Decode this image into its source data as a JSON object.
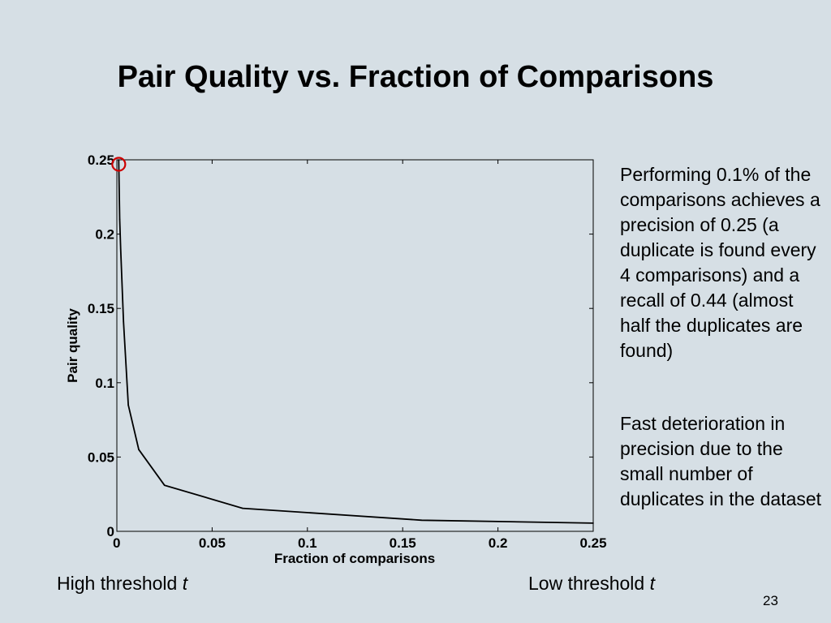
{
  "slide": {
    "title": "Pair Quality vs. Fraction of Comparisons",
    "page_number": "23"
  },
  "notes": [
    "Performing 0.1% of the comparisons achieves a precision of 0.25 (a duplicate is found every 4 comparisons)  and a recall of 0.44 (almost half the duplicates are found)",
    "Fast deterioration in precision due to the small number of duplicates in the dataset"
  ],
  "footer": {
    "left_prefix": "High threshold",
    "left_var": "t",
    "right_prefix": "Low threshold",
    "right_var": "t"
  },
  "chart_data": {
    "type": "line",
    "title": "",
    "xlabel": "Fraction of comparisons",
    "ylabel": "Pair quality",
    "xlim": [
      0,
      0.25
    ],
    "ylim": [
      0,
      0.25
    ],
    "xticks": [
      0,
      0.05,
      0.1,
      0.15,
      0.2,
      0.25
    ],
    "xtick_labels": [
      "0",
      "0.05",
      "0.1",
      "0.15",
      "0.2",
      "0.25"
    ],
    "yticks": [
      0,
      0.05,
      0.1,
      0.15,
      0.2,
      0.25
    ],
    "ytick_labels": [
      "0",
      "0.05",
      "0.1",
      "0.15",
      "0.2",
      "0.25"
    ],
    "grid": false,
    "line_color": "#000000",
    "marker_color": "#cc0000",
    "series": [
      {
        "name": "Pair quality",
        "x": [
          0.001,
          0.0015,
          0.002,
          0.0035,
          0.006,
          0.0115,
          0.025,
          0.066,
          0.16,
          0.25
        ],
        "y": [
          0.25,
          0.21,
          0.19,
          0.141,
          0.085,
          0.055,
          0.031,
          0.0155,
          0.0075,
          0.0055
        ]
      }
    ],
    "highlight": {
      "x": 0.001,
      "y": 0.247
    }
  }
}
